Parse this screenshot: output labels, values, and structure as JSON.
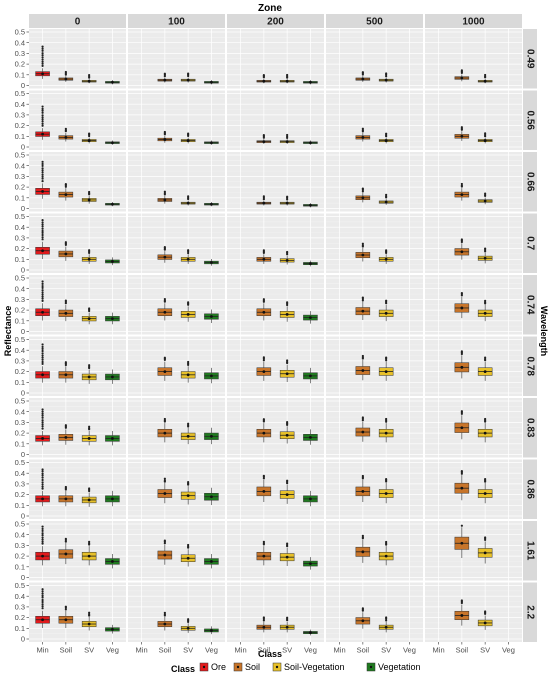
{
  "chart_data": {
    "type": "boxplot",
    "title": "Zone",
    "xlabel": "Class",
    "ylabel": "Reflectance",
    "row_facet_label": "Wavelength",
    "zones": [
      "0",
      "100",
      "200",
      "500",
      "1000"
    ],
    "wavelengths": [
      "0.49",
      "0.56",
      "0.66",
      "0.7",
      "0.74",
      "0.78",
      "0.83",
      "0.86",
      "1.61",
      "2.2"
    ],
    "categories": [
      "Min",
      "Soil",
      "SV",
      "Veg"
    ],
    "ylim": [
      0,
      0.5
    ],
    "y_ticks": [
      "0",
      "0.1",
      "0.2",
      "0.3",
      "0.4",
      "0.5"
    ],
    "grid": true,
    "legend": {
      "title": "Class",
      "position": "bottom",
      "items": [
        {
          "label": "Ore",
          "color": "#e41a1c"
        },
        {
          "label": "Soil",
          "color": "#c8752a"
        },
        {
          "label": "Soil-Vegetation",
          "color": "#e8c12a"
        },
        {
          "label": "Vegetation",
          "color": "#1f7a1f"
        }
      ]
    },
    "class_colors": {
      "Min": "#e41a1c",
      "Soil": "#c8752a",
      "SV": "#e8c12a",
      "Veg": "#1f7a1f"
    },
    "medians": {
      "0": [
        [
          0.11,
          0.06,
          0.04,
          0.03
        ],
        [
          0.12,
          0.09,
          0.06,
          0.04
        ],
        [
          0.16,
          0.13,
          0.08,
          0.04
        ],
        [
          0.18,
          0.15,
          0.1,
          0.08
        ],
        [
          0.18,
          0.17,
          0.12,
          0.12
        ],
        [
          0.17,
          0.17,
          0.15,
          0.15
        ],
        [
          0.15,
          0.16,
          0.15,
          0.15
        ],
        [
          0.16,
          0.16,
          0.15,
          0.16
        ],
        [
          0.2,
          0.22,
          0.2,
          0.15
        ],
        [
          0.18,
          0.18,
          0.14,
          0.09
        ]
      ],
      "100": [
        [
          null,
          0.05,
          0.05,
          0.03
        ],
        [
          null,
          0.07,
          0.06,
          0.04
        ],
        [
          null,
          0.08,
          0.05,
          0.04
        ],
        [
          null,
          0.12,
          0.1,
          0.07
        ],
        [
          null,
          0.18,
          0.16,
          0.14
        ],
        [
          null,
          0.2,
          0.17,
          0.16
        ],
        [
          null,
          0.2,
          0.17,
          0.17
        ],
        [
          null,
          0.21,
          0.19,
          0.18
        ],
        [
          null,
          0.21,
          0.18,
          0.15
        ],
        [
          null,
          0.14,
          0.1,
          0.08
        ]
      ],
      "200": [
        [
          null,
          0.04,
          0.04,
          0.03
        ],
        [
          null,
          0.05,
          0.05,
          0.04
        ],
        [
          null,
          0.05,
          0.05,
          0.03
        ],
        [
          null,
          0.1,
          0.09,
          0.06
        ],
        [
          null,
          0.18,
          0.16,
          0.13
        ],
        [
          null,
          0.2,
          0.18,
          0.16
        ],
        [
          null,
          0.2,
          0.18,
          0.16
        ],
        [
          null,
          0.23,
          0.2,
          0.16
        ],
        [
          null,
          0.2,
          0.19,
          0.13
        ],
        [
          null,
          0.11,
          0.11,
          0.06
        ]
      ],
      "500": [
        [
          null,
          0.06,
          0.05,
          null
        ],
        [
          null,
          0.09,
          0.06,
          null
        ],
        [
          null,
          0.1,
          0.06,
          null
        ],
        [
          null,
          0.14,
          0.1,
          null
        ],
        [
          null,
          0.19,
          0.17,
          null
        ],
        [
          null,
          0.21,
          0.2,
          null
        ],
        [
          null,
          0.21,
          0.2,
          null
        ],
        [
          null,
          0.23,
          0.21,
          null
        ],
        [
          null,
          0.24,
          0.2,
          null
        ],
        [
          null,
          0.17,
          0.11,
          null
        ]
      ],
      "1000": [
        [
          null,
          0.07,
          0.04,
          null
        ],
        [
          null,
          0.1,
          0.06,
          null
        ],
        [
          null,
          0.13,
          0.07,
          null
        ],
        [
          null,
          0.17,
          0.11,
          null
        ],
        [
          null,
          0.22,
          0.17,
          null
        ],
        [
          null,
          0.24,
          0.2,
          null
        ],
        [
          null,
          0.25,
          0.2,
          null
        ],
        [
          null,
          0.26,
          0.21,
          null
        ],
        [
          null,
          0.32,
          0.23,
          null
        ],
        [
          null,
          0.22,
          0.15,
          null
        ]
      ]
    }
  }
}
